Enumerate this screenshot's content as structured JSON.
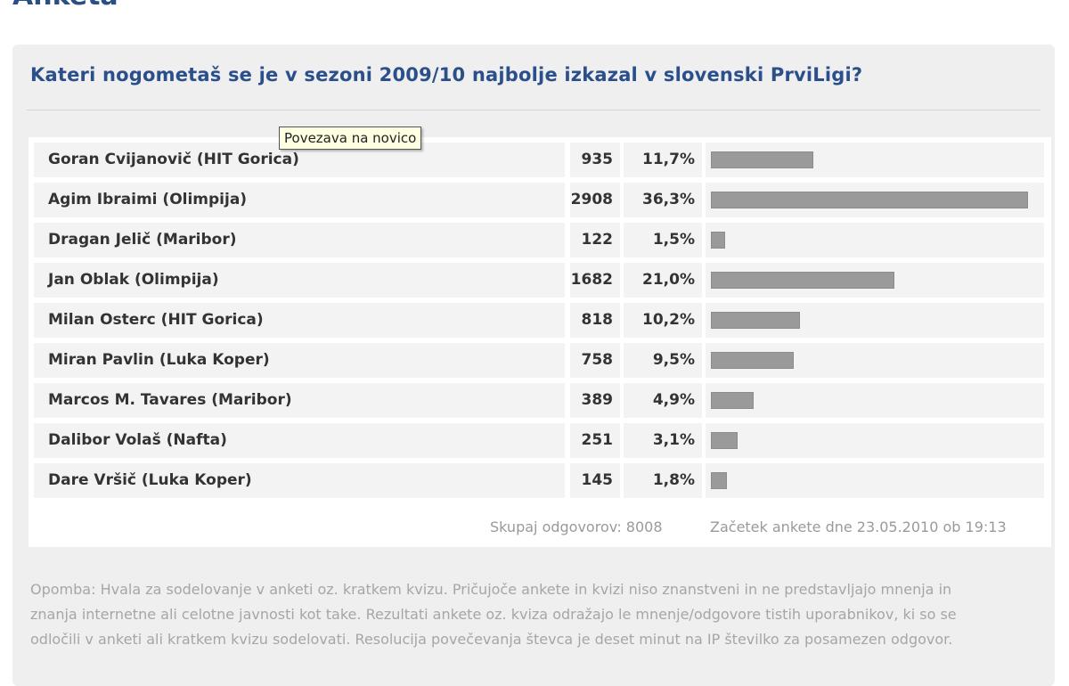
{
  "header": {
    "partial_title": "Anketa"
  },
  "poll": {
    "question": "Kateri nogometaš se je v sezoni 2009/10 najbolje izkazal v slovenski PrviLigi?",
    "tooltip": "Povezava na novico",
    "rows": [
      {
        "name": "Goran Cvijanovič (HIT Gorica)",
        "votes": "935",
        "percent": "11,7%",
        "fraction": 0.117
      },
      {
        "name": "Agim Ibraimi (Olimpija)",
        "votes": "2908",
        "percent": "36,3%",
        "fraction": 0.363
      },
      {
        "name": "Dragan Jelič (Maribor)",
        "votes": "122",
        "percent": "1,5%",
        "fraction": 0.015
      },
      {
        "name": "Jan Oblak (Olimpija)",
        "votes": "1682",
        "percent": "21,0%",
        "fraction": 0.21
      },
      {
        "name": "Milan Osterc (HIT Gorica)",
        "votes": "818",
        "percent": "10,2%",
        "fraction": 0.102
      },
      {
        "name": "Miran Pavlin (Luka Koper)",
        "votes": "758",
        "percent": "9,5%",
        "fraction": 0.095
      },
      {
        "name": "Marcos M. Tavares (Maribor)",
        "votes": "389",
        "percent": "4,9%",
        "fraction": 0.049
      },
      {
        "name": "Dalibor Volaš (Nafta)",
        "votes": "251",
        "percent": "3,1%",
        "fraction": 0.031
      },
      {
        "name": "Dare Vršič (Luka Koper)",
        "votes": "145",
        "percent": "1,8%",
        "fraction": 0.018
      }
    ],
    "total_answers": "Skupaj odgovorov: 8008",
    "start_date": "Začetek ankete dne 23.05.2010 ob 19:13",
    "note": "Opomba: Hvala za sodelovanje v anketi oz. kratkem kvizu. Pričujoče ankete in kvizi niso znanstveni in ne predstavljajo mnenja in znanja internetne ali celotne javnosti kot take. Rezultati ankete oz. kviza odražajo le mnenje/odgovore tistih uporabnikov, ki so se odločili v anketi ali kratkem kvizu sodelovati. Resolucija povečevanja števca je deset minut na IP številko za posamezen odgovor.",
    "bar_color": "#9a9a9a"
  }
}
